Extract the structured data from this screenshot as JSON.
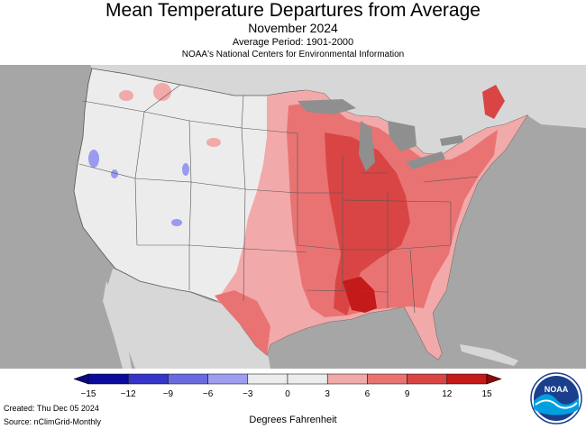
{
  "title": "Mean Temperature Departures from Average",
  "subtitle": "November 2024",
  "average_period": "Average Period: 1901-2000",
  "agency": "NOAA's National Centers for Environmental Information",
  "legend": {
    "ticks": [
      "−15",
      "−12",
      "−9",
      "−6",
      "−3",
      "0",
      "3",
      "6",
      "9",
      "12",
      "15"
    ],
    "units": "Degrees Fahrenheit",
    "colors": [
      "#0c0c9c",
      "#3535c8",
      "#6a6ae0",
      "#9e9ef0",
      "#ececec",
      "#ececec",
      "#f2a9a9",
      "#e97373",
      "#d94545",
      "#c41a1a"
    ]
  },
  "footer": {
    "created": "Created: Thu Dec 05 2024",
    "source": "Source: nClimGrid-Monthly"
  },
  "logo": {
    "text": "NOAA"
  },
  "colors": {
    "ocean": "#a6a6a6",
    "neighbors": "#d7d7d7",
    "lakes": "#8f8f8f",
    "neutral": "#ececec",
    "warm_light": "#f2a9a9",
    "warm_mid": "#e97373",
    "warm_strong": "#d94545",
    "cool": "#9a9af0"
  }
}
